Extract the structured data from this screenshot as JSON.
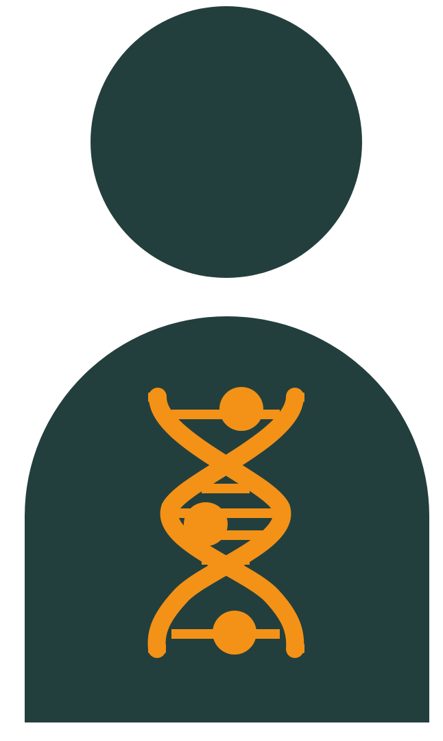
{
  "figure": {
    "icons": {
      "head": "head-icon",
      "body": "torso-icon",
      "dna": "dna-helix-icon"
    },
    "colors": {
      "background": "#ffffff",
      "person": "#233f3d",
      "dna": "#f39217"
    }
  }
}
